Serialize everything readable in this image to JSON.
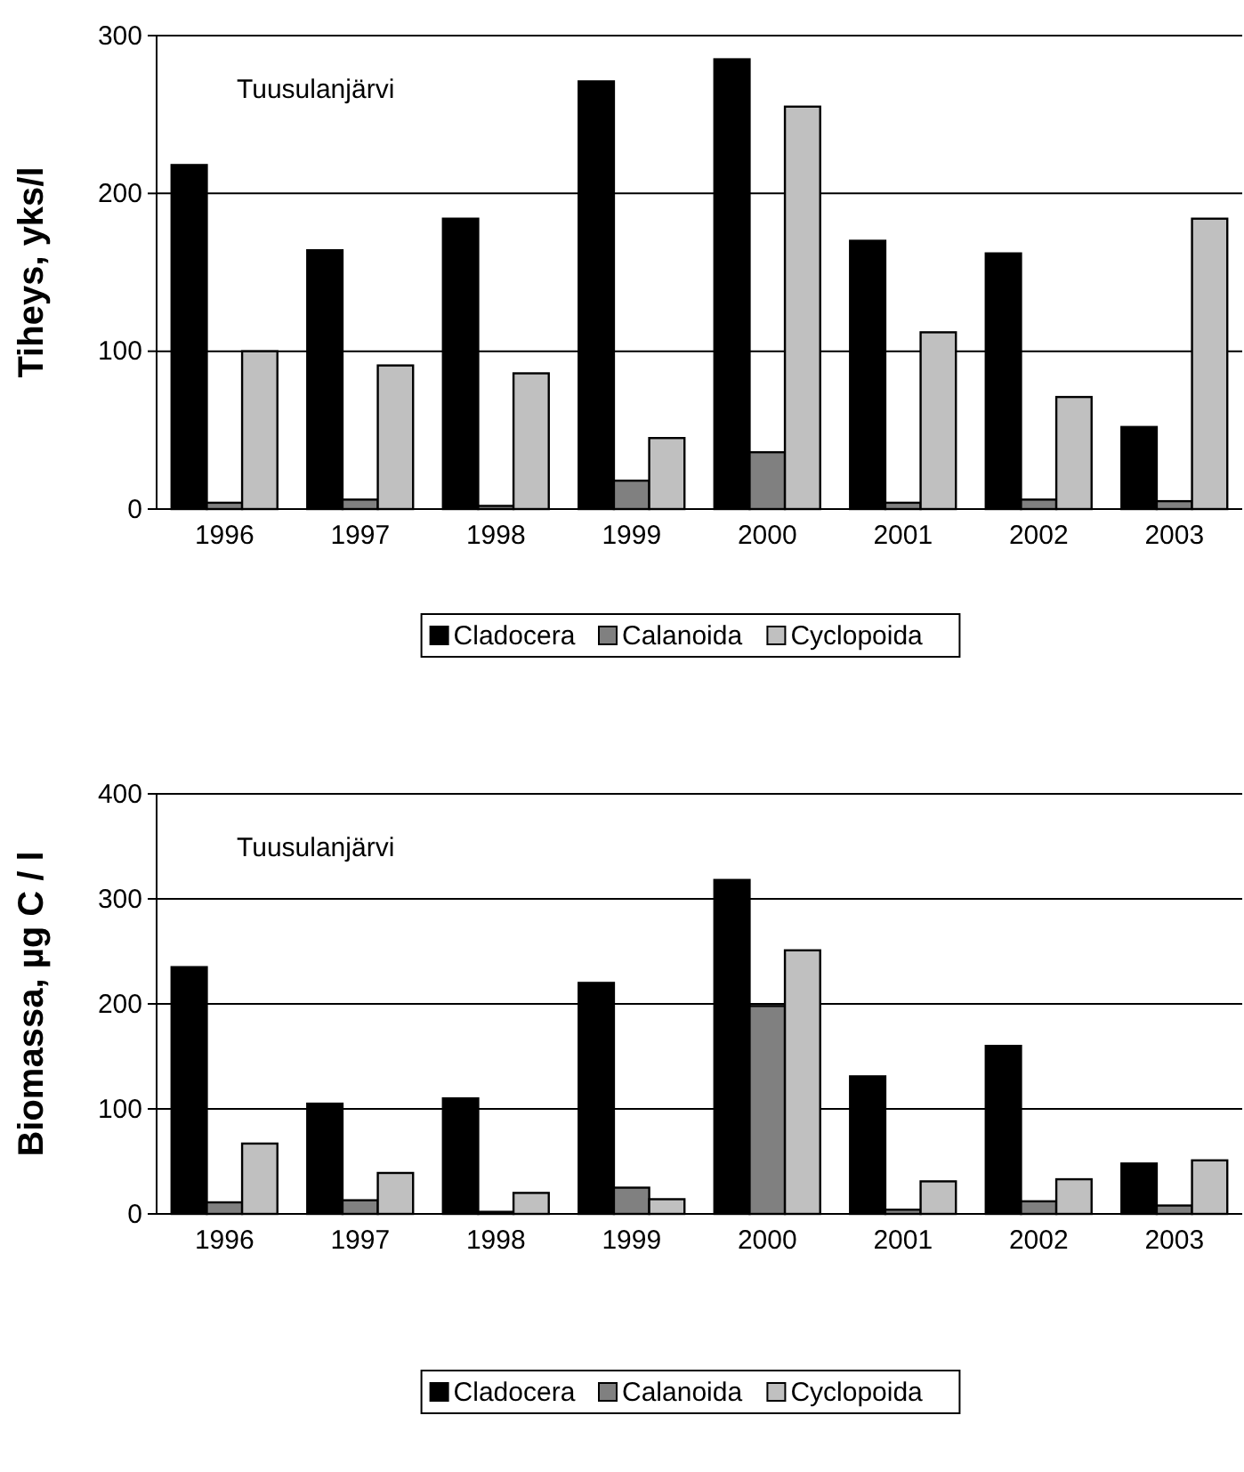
{
  "chart_data": [
    {
      "type": "bar",
      "ylabel": "Tiheys, yks/l",
      "annotations": [
        "Tuusulanjärvi"
      ],
      "categories": [
        "1996",
        "1997",
        "1998",
        "1999",
        "2000",
        "2001",
        "2002",
        "2003"
      ],
      "series": [
        {
          "name": "Cladocera",
          "color": "#000000",
          "values": [
            218,
            164,
            184,
            271,
            285,
            170,
            162,
            52
          ]
        },
        {
          "name": "Calanoida",
          "color": "#808080",
          "values": [
            4,
            6,
            2,
            18,
            36,
            4,
            6,
            5
          ]
        },
        {
          "name": "Cyclopoida",
          "color": "#c0c0c0",
          "values": [
            100,
            91,
            86,
            45,
            255,
            112,
            71,
            184
          ]
        }
      ],
      "ylim": [
        0,
        300
      ],
      "yticks": [
        0,
        100,
        200,
        300
      ],
      "grid": "y",
      "legend": "bottom"
    },
    {
      "type": "bar",
      "ylabel": "Biomassa, µg C / l",
      "annotations": [
        "Tuusulanjärvi"
      ],
      "categories": [
        "1996",
        "1997",
        "1998",
        "1999",
        "2000",
        "2001",
        "2002",
        "2003"
      ],
      "series": [
        {
          "name": "Cladocera",
          "color": "#000000",
          "values": [
            235,
            105,
            110,
            220,
            318,
            131,
            160,
            48
          ]
        },
        {
          "name": "Calanoida",
          "color": "#808080",
          "values": [
            11,
            13,
            2,
            25,
            198,
            4,
            12,
            8
          ]
        },
        {
          "name": "Cyclopoida",
          "color": "#c0c0c0",
          "values": [
            67,
            39,
            20,
            14,
            251,
            31,
            33,
            51
          ]
        }
      ],
      "ylim": [
        0,
        400
      ],
      "yticks": [
        0,
        100,
        200,
        300,
        400
      ],
      "grid": "y",
      "legend": "bottom"
    }
  ]
}
